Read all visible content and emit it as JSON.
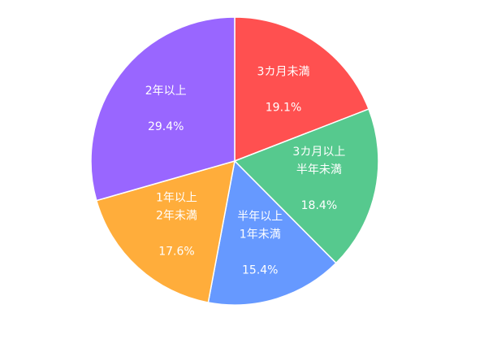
{
  "chart_data": {
    "type": "pie",
    "start_angle_deg": 0,
    "direction": "clockwise",
    "slices": [
      {
        "label_lines": [
          "3カ月未満"
        ],
        "value": 19.1,
        "value_label": "19.1%",
        "color": "#ff5050"
      },
      {
        "label_lines": [
          "3カ月以上",
          "半年未満"
        ],
        "value": 18.4,
        "value_label": "18.4%",
        "color": "#56c98e"
      },
      {
        "label_lines": [
          "半年以上",
          "1年未満"
        ],
        "value": 15.4,
        "value_label": "15.4%",
        "color": "#6699ff"
      },
      {
        "label_lines": [
          "1年以上",
          "2年未満"
        ],
        "value": 17.6,
        "value_label": "17.6%",
        "color": "#ffad3b"
      },
      {
        "label_lines": [
          "2年以上"
        ],
        "value": 29.4,
        "value_label": "29.4%",
        "color": "#9966ff"
      }
    ]
  }
}
